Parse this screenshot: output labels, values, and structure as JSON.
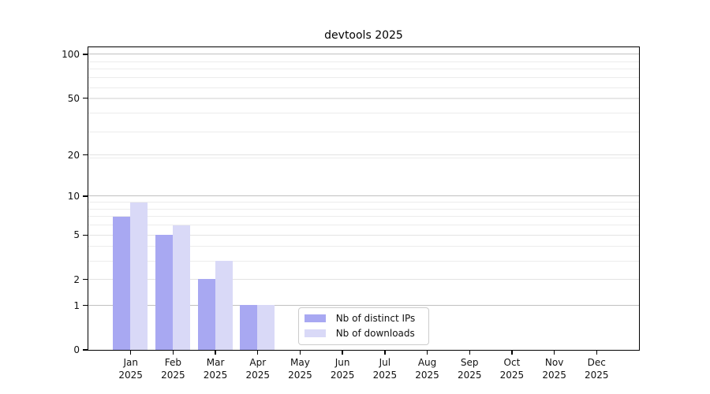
{
  "chart_data": {
    "type": "bar",
    "title": "devtools 2025",
    "categories": [
      "Jan",
      "Feb",
      "Mar",
      "Apr",
      "May",
      "Jun",
      "Jul",
      "Aug",
      "Sep",
      "Oct",
      "Nov",
      "Dec"
    ],
    "category_year": "2025",
    "series": [
      {
        "name": "Nb of distinct IPs",
        "color": "#a8a8f2",
        "values": [
          7,
          5,
          2,
          1,
          0,
          0,
          0,
          0,
          0,
          0,
          0,
          0
        ]
      },
      {
        "name": "Nb of downloads",
        "color": "#d9d9f7",
        "values": [
          9,
          6,
          3,
          1,
          0,
          0,
          0,
          0,
          0,
          0,
          0,
          0
        ]
      }
    ],
    "xlabel": "",
    "ylabel": "",
    "yscale": "log1p",
    "ylim": [
      0,
      100
    ],
    "yticks_major": [
      0,
      1,
      2,
      5,
      10,
      20,
      50,
      100
    ],
    "yticks_emphasized": [
      1,
      10,
      100
    ],
    "yticks_minor": [
      3,
      4,
      6,
      7,
      8,
      9,
      19,
      29,
      39,
      49,
      59,
      69,
      79,
      89
    ],
    "grid": true,
    "legend_position": "lower center"
  },
  "colors": {
    "spine": "#000000",
    "grid_minor": "#ececec",
    "grid_major": "#e3e3e3",
    "grid_emphasized": "#c0c0c0",
    "background": "#ffffff"
  }
}
